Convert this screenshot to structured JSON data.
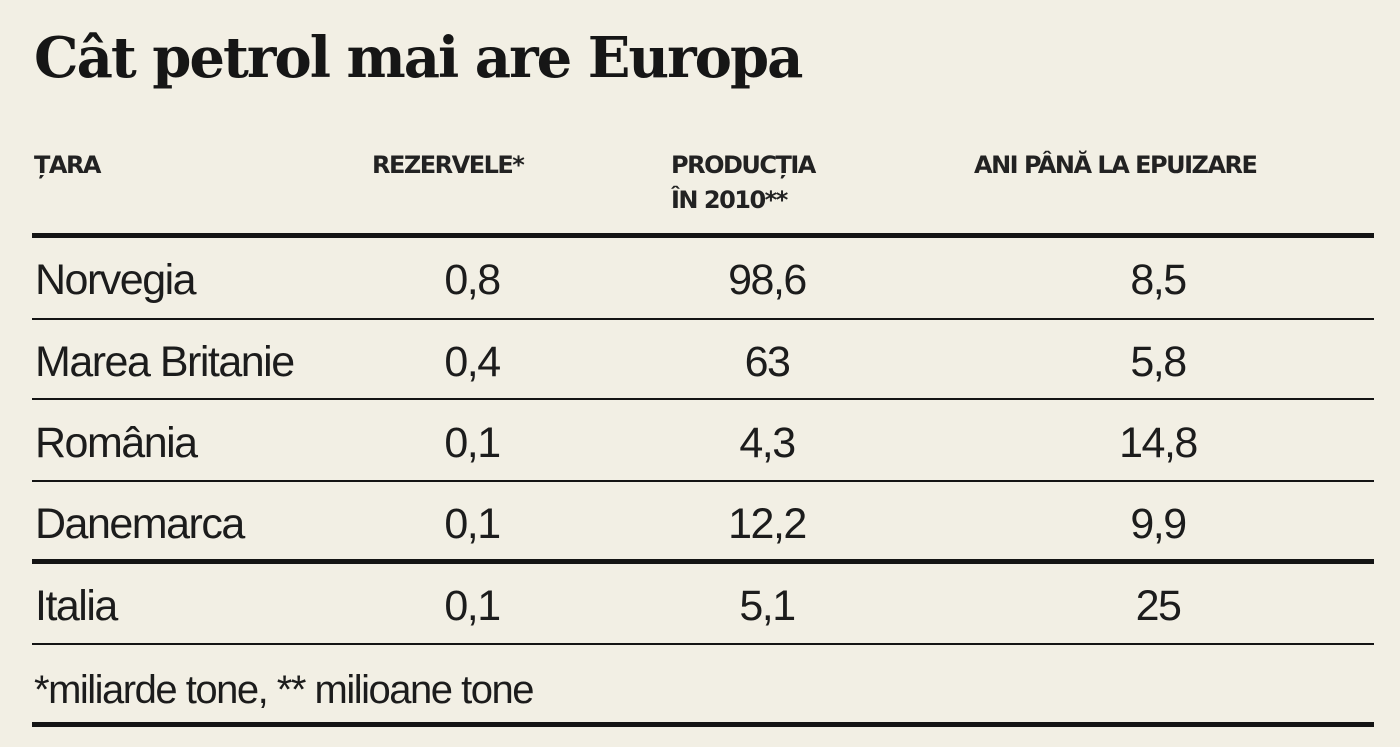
{
  "title": "Cât petrol mai are Europa",
  "columns": {
    "country": "ȚARA",
    "reserves": "REZERVELE*",
    "production_line1": "PRODUCȚIA",
    "production_line2": "ÎN 2010**",
    "years": "ANI PÂNĂ LA EPUIZARE"
  },
  "rows": [
    {
      "country": "Norvegia",
      "reserves": "0,8",
      "production": "98,6",
      "years": "8,5"
    },
    {
      "country": "Marea Britanie",
      "reserves": "0,4",
      "production": "63",
      "years": "5,8"
    },
    {
      "country": "România",
      "reserves": "0,1",
      "production": "4,3",
      "years": "14,8"
    },
    {
      "country": "Danemarca",
      "reserves": "0,1",
      "production": "12,2",
      "years": "9,9"
    },
    {
      "country": "Italia",
      "reserves": "0,1",
      "production": "5,1",
      "years": "25"
    }
  ],
  "footnote": "*miliarde tone, ** milioane tone"
}
